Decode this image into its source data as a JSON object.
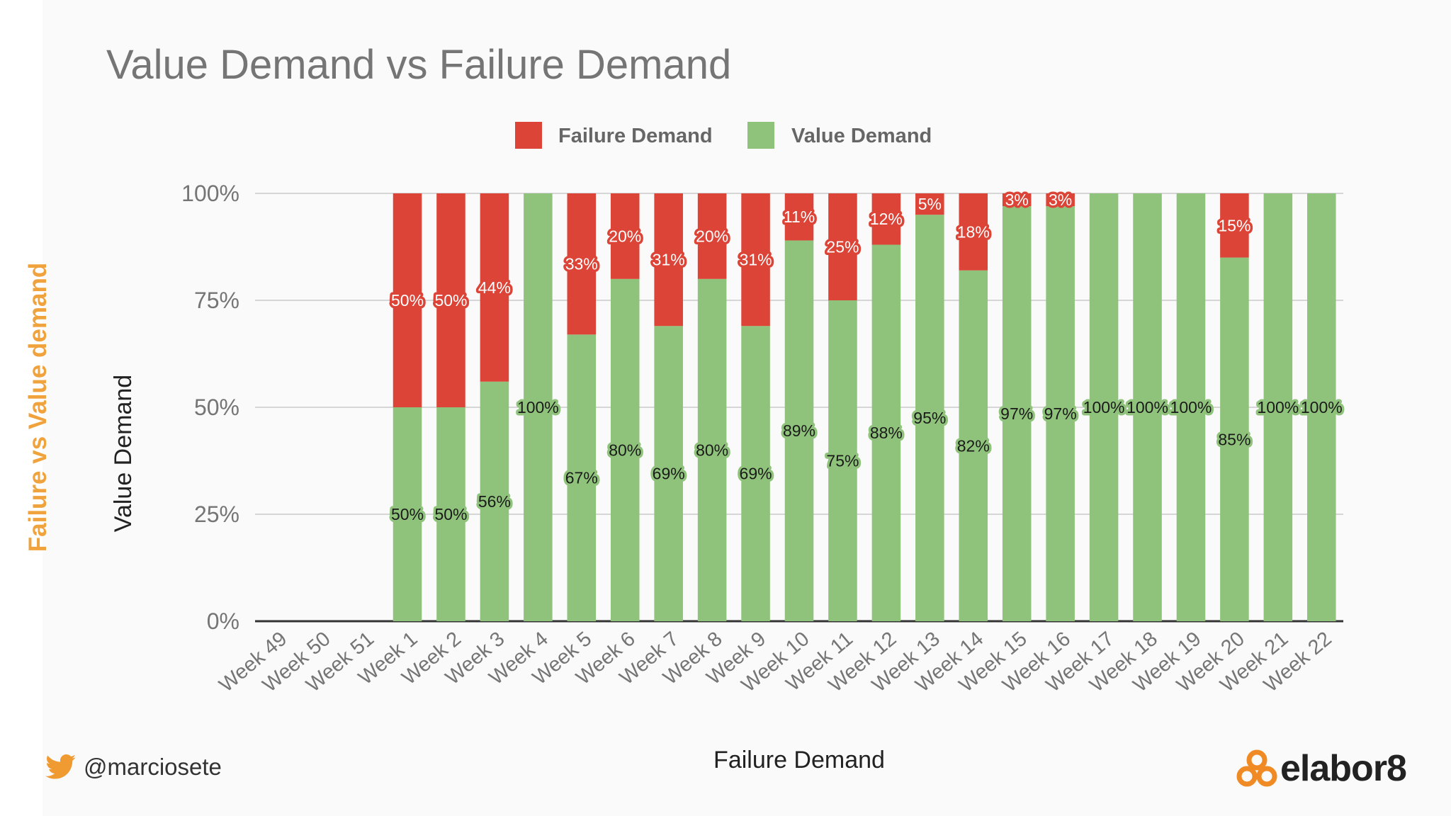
{
  "slide": {
    "side_label": "Failure vs Value demand",
    "twitter_handle": "@marciosete",
    "brand": "elabor8"
  },
  "colors": {
    "failure": "#db4437",
    "value": "#8fc37b",
    "title": "#757575",
    "side_label": "#f0a23c",
    "twitter": "#f09a32",
    "brand_icon": "#f08a24"
  },
  "chart_data": {
    "type": "bar",
    "stacked": true,
    "percent_stacked": true,
    "title": "Value Demand vs Failure Demand",
    "xlabel": "Failure Demand",
    "ylabel": "Value Demand",
    "ylim": [
      0,
      100
    ],
    "yticks": [
      "0%",
      "25%",
      "50%",
      "75%",
      "100%"
    ],
    "grid": true,
    "legend": "top",
    "categories": [
      "Week 49",
      "Week 50",
      "Week 51",
      "Week 1",
      "Week 2",
      "Week 3",
      "Week 4",
      "Week 5",
      "Week 6",
      "Week 7",
      "Week 8",
      "Week 9",
      "Week 10",
      "Week 11",
      "Week 12",
      "Week 13",
      "Week 14",
      "Week 15",
      "Week 16",
      "Week 17",
      "Week 18",
      "Week 19",
      "Week 20",
      "Week 21",
      "Week 22"
    ],
    "series": [
      {
        "name": "Failure Demand",
        "color": "#db4437",
        "values": [
          null,
          null,
          null,
          50,
          50,
          44,
          0,
          33,
          20,
          31,
          20,
          31,
          11,
          25,
          12,
          5,
          18,
          3,
          3,
          0,
          0,
          0,
          15,
          0,
          0
        ]
      },
      {
        "name": "Value Demand",
        "color": "#8fc37b",
        "values": [
          null,
          null,
          null,
          50,
          50,
          56,
          100,
          67,
          80,
          69,
          80,
          69,
          89,
          75,
          88,
          95,
          82,
          97,
          97,
          100,
          100,
          100,
          85,
          100,
          100
        ]
      }
    ]
  }
}
